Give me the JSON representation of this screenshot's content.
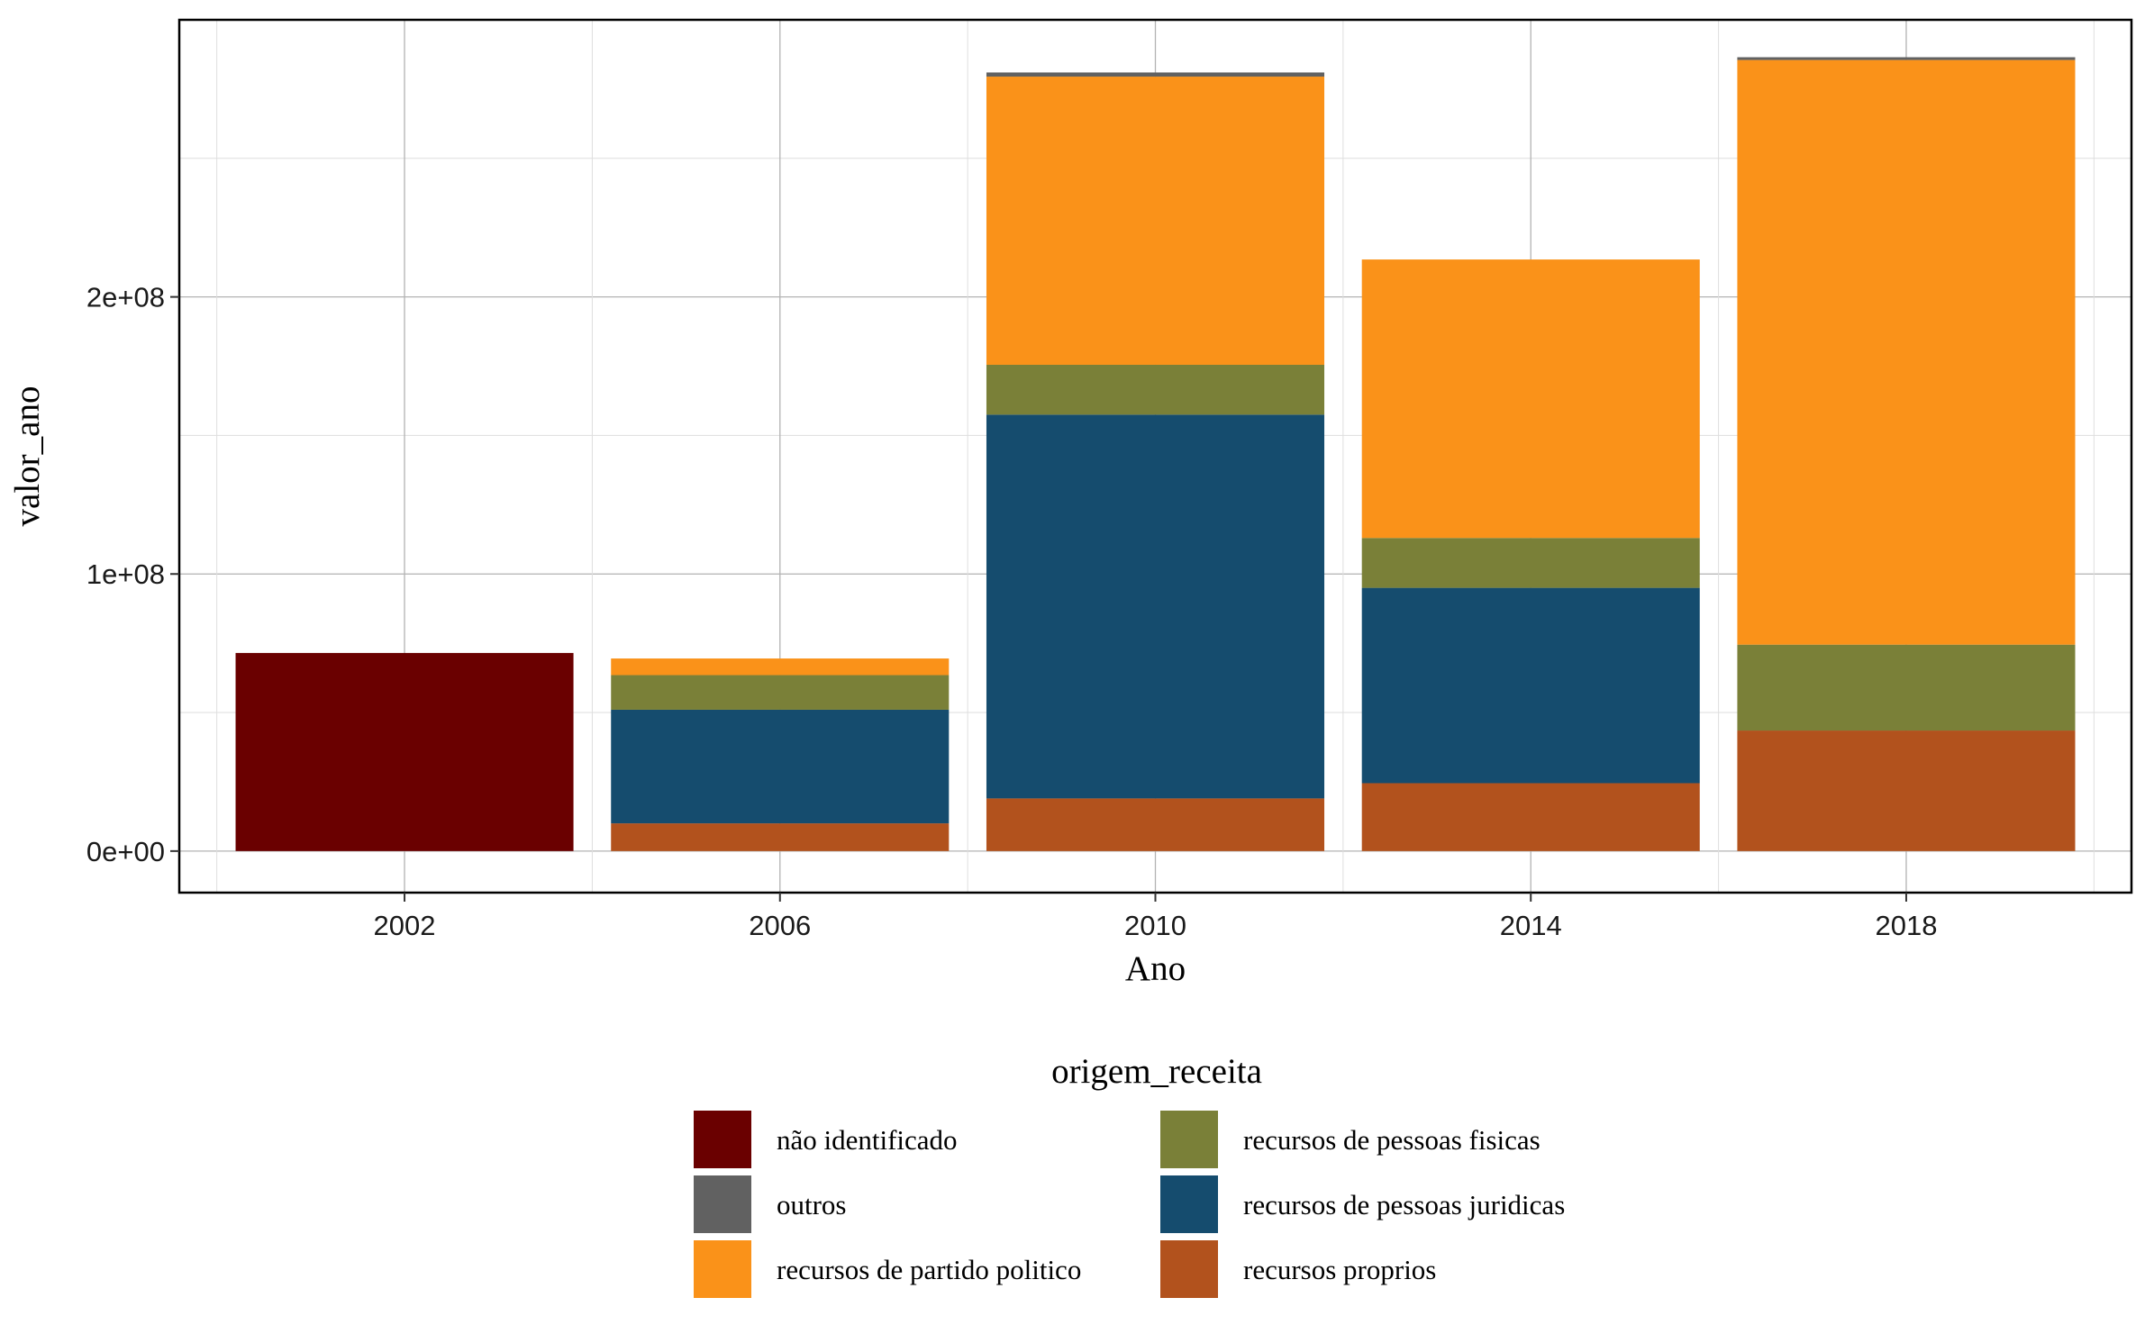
{
  "chart_data": {
    "type": "bar",
    "stacked": true,
    "xlabel": "Ano",
    "ylabel": "valor_ano",
    "categories": [
      "2002",
      "2006",
      "2010",
      "2014",
      "2018"
    ],
    "ylim": [
      -15000000,
      300000000
    ],
    "y_ticks": [
      0,
      100000000,
      200000000
    ],
    "y_tick_labels": [
      "0e+00",
      "1e+08",
      "2e+08"
    ],
    "grid": true,
    "legend": {
      "title": "origem_receita",
      "placement": "bottom"
    },
    "series": [
      {
        "name": "recursos proprios",
        "color": "#B2521D",
        "values": [
          0,
          10000000,
          19000000,
          24500000,
          43500000
        ]
      },
      {
        "name": "recursos de pessoas juridicas",
        "color": "#154C6E",
        "values": [
          0,
          41000000,
          138500000,
          70500000,
          0
        ]
      },
      {
        "name": "recursos de pessoas fisicas",
        "color": "#7A8038",
        "values": [
          0,
          12500000,
          18000000,
          18000000,
          31000000
        ]
      },
      {
        "name": "recursos de partido politico",
        "color": "#FA9219",
        "values": [
          0,
          6000000,
          104000000,
          100500000,
          211000000
        ]
      },
      {
        "name": "outros",
        "color": "#616161",
        "values": [
          0,
          0,
          1500000,
          0,
          1000000
        ]
      },
      {
        "name": "não identificado",
        "color": "#6A0000",
        "values": [
          71500000,
          0,
          0,
          0,
          0
        ]
      }
    ],
    "legend_order": [
      "não identificado",
      "outros",
      "recursos de partido politico",
      "recursos de pessoas fisicas",
      "recursos de pessoas juridicas",
      "recursos proprios"
    ]
  }
}
